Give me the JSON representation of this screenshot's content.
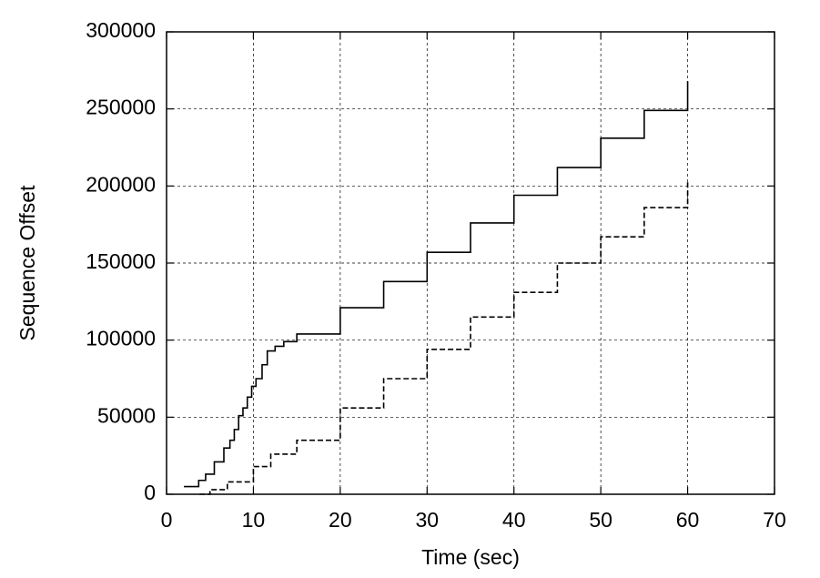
{
  "chart_data": {
    "type": "line",
    "step": true,
    "grid": true,
    "xlabel": "Time (sec)",
    "ylabel": "Sequence Offset",
    "xlim": [
      0,
      70
    ],
    "xticks": [
      0,
      10,
      20,
      30,
      40,
      50,
      60,
      70
    ],
    "ylim": [
      0,
      300000
    ],
    "yticks": [
      0,
      50000,
      100000,
      150000,
      200000,
      250000,
      300000
    ],
    "series": [
      {
        "color": "#000000",
        "dashed": false,
        "x": [
          2,
          3.7,
          4.5,
          5.5,
          6.6,
          7.3,
          7.8,
          8.3,
          8.8,
          9.3,
          9.8,
          10.3,
          11,
          11.6,
          12.5,
          13.5,
          15,
          20,
          25,
          30,
          35,
          40,
          45,
          50,
          55,
          60
        ],
        "values": [
          5000,
          9000,
          13000,
          21000,
          30000,
          35000,
          42000,
          51000,
          56000,
          63000,
          70000,
          75000,
          84000,
          93000,
          96000,
          99000,
          104000,
          121000,
          138000,
          157000,
          176000,
          194000,
          212000,
          231000,
          249000,
          268000
        ]
      },
      {
        "color": "#000000",
        "dashed": true,
        "x": [
          3.8,
          5,
          7,
          10,
          12,
          15,
          20,
          25,
          30,
          35,
          40,
          45,
          50,
          55,
          60
        ],
        "values": [
          0,
          3000,
          8000,
          18000,
          26000,
          35000,
          56000,
          75000,
          94000,
          115000,
          131000,
          150000,
          167000,
          186000,
          203000
        ]
      }
    ]
  }
}
